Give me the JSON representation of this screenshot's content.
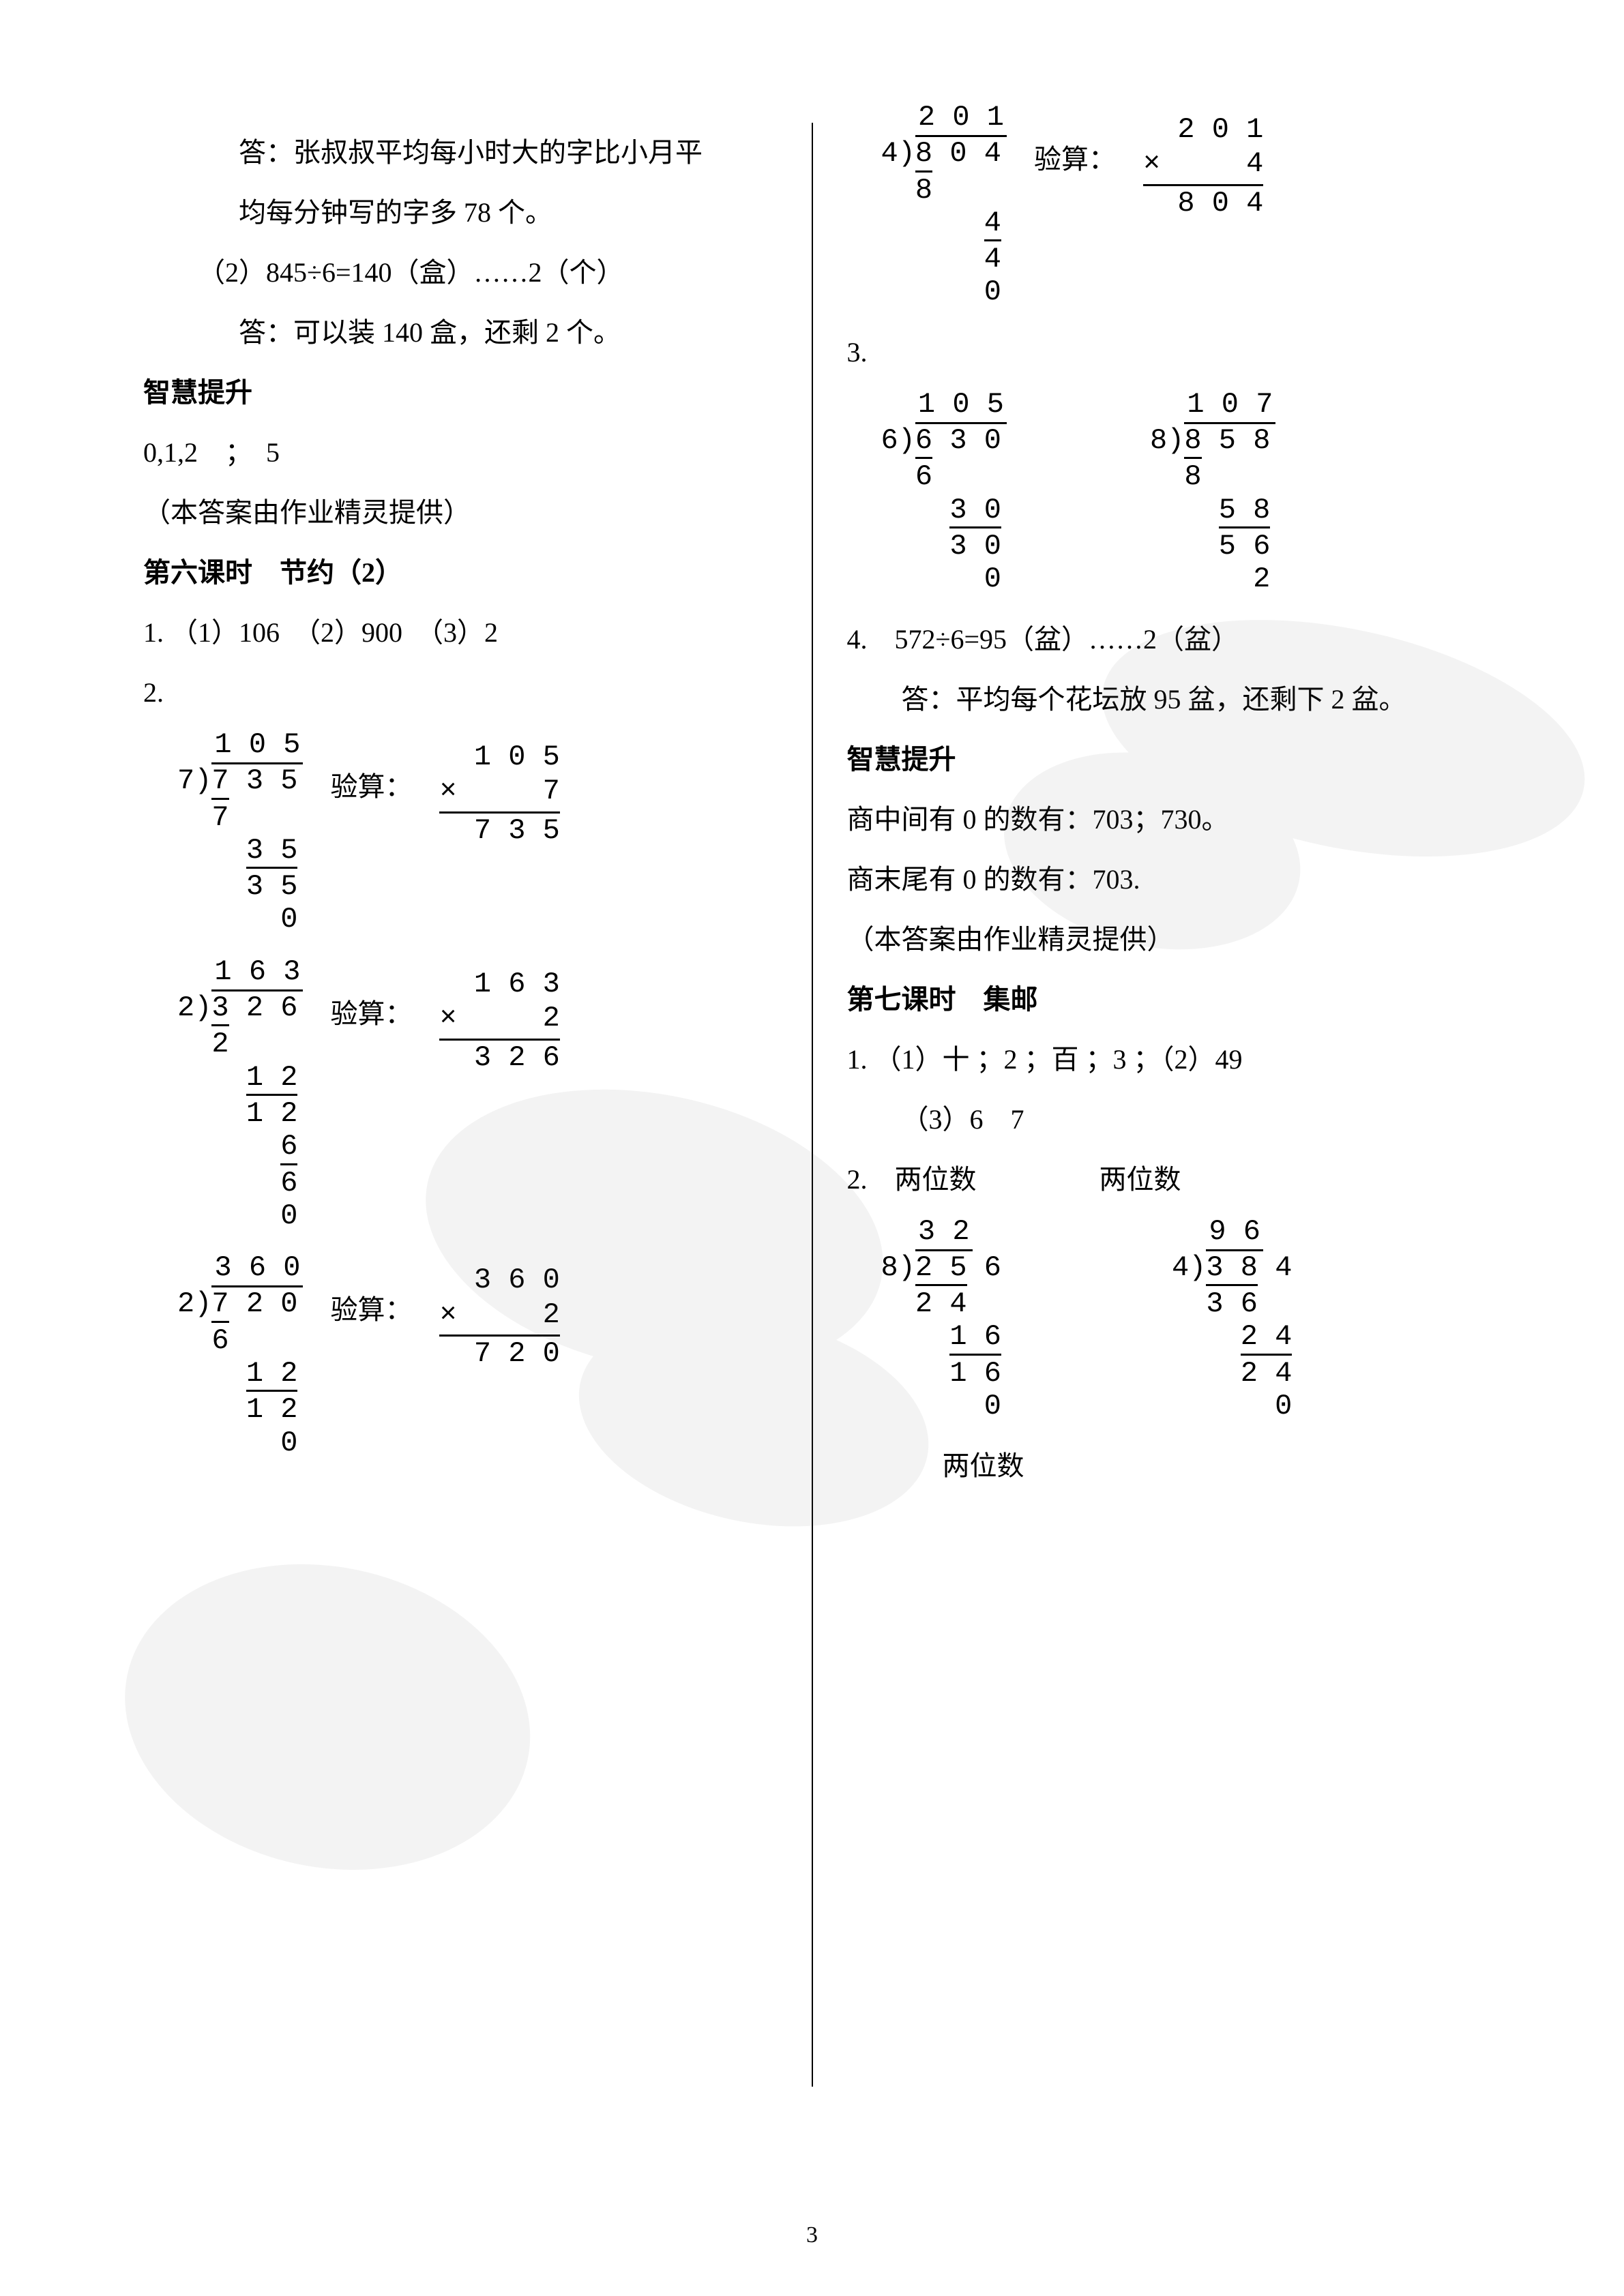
{
  "page_number": "3",
  "colors": {
    "text": "#000000",
    "bg": "#ffffff",
    "watermark": "#888888"
  },
  "left": {
    "ans1": "答：张叔叔平均每小时大的字比小月平",
    "ans1b": "均每分钟写的字多 78 个。",
    "item2": "（2）845÷6=140（盒）……2（个）",
    "ans2": "答：可以装 140 盒，还剩 2 个。",
    "wisdom": "智慧提升",
    "w_line": "0,1,2　；　5",
    "credit": "（本答案由作业精灵提供）",
    "lesson6": "第六课时　节约（2）",
    "q1": "1. （1）106　（2）900　（3）2",
    "q2": "2.",
    "check_label": "验算：",
    "div_a": {
      "divisor": "7",
      "dividend": "7 3 5",
      "quotient": "1 0 5",
      "steps": [
        "7",
        "",
        "3 5",
        "3 5",
        "",
        "0"
      ],
      "lines": [
        1,
        0,
        0,
        1,
        0,
        0
      ],
      "pads": [
        "",
        "",
        "  ",
        "  ",
        "",
        "    "
      ],
      "line_widths": [
        "3ch",
        "",
        "",
        "3ch",
        "",
        "1ch"
      ]
    },
    "mult_a": {
      "a": "1 0 5",
      "b": "×     7",
      "r": "7 3 5"
    },
    "div_b": {
      "divisor": "2",
      "dividend": "3 2 6",
      "quotient": "1 6 3",
      "steps": [
        "2",
        "",
        "1 2",
        "1 2",
        "",
        "6",
        "6",
        "",
        "0"
      ],
      "lines": [
        1,
        0,
        0,
        1,
        0,
        0,
        1,
        0,
        0
      ],
      "pads": [
        "",
        "",
        "  ",
        "  ",
        "",
        "    ",
        "    ",
        "",
        "    "
      ],
      "line_widths": [
        "3ch",
        "",
        "",
        "3ch",
        "",
        "1ch",
        "1ch",
        "",
        "1ch"
      ]
    },
    "mult_b": {
      "a": "1 6 3",
      "b": "×     2",
      "r": "3 2 6"
    },
    "div_c": {
      "divisor": "2",
      "dividend": "7 2 0",
      "quotient": "3 6 0",
      "steps": [
        "6",
        "",
        "1 2",
        "1 2",
        "",
        "0"
      ],
      "lines": [
        1,
        0,
        0,
        1,
        0,
        0
      ],
      "pads": [
        "",
        "",
        "  ",
        "  ",
        "",
        "    "
      ],
      "line_widths": [
        "3ch",
        "",
        "",
        "3ch",
        "",
        "1ch"
      ]
    },
    "mult_c": {
      "a": "3 6 0",
      "b": "×     2",
      "r": "7 2 0"
    }
  },
  "right": {
    "check_label": "验算：",
    "div_d": {
      "divisor": "4",
      "dividend": "8 0 4",
      "quotient": "2 0 1",
      "steps": [
        "8",
        "",
        "4",
        "4",
        "",
        "0"
      ],
      "lines": [
        1,
        0,
        0,
        1,
        0,
        0
      ],
      "pads": [
        "",
        "",
        "    ",
        "    ",
        "",
        "    "
      ],
      "line_widths": [
        "3ch",
        "",
        "",
        "1ch",
        "",
        "1ch"
      ]
    },
    "mult_d": {
      "a": "2 0 1",
      "b": "×     4",
      "r": "8 0 4"
    },
    "q3": "3.",
    "div_e": {
      "divisor": "6",
      "dividend": "6 3 0",
      "quotient": "1 0 5",
      "steps": [
        "6",
        "",
        "3 0",
        "3 0",
        "",
        "0"
      ],
      "lines": [
        1,
        0,
        0,
        1,
        0,
        0
      ],
      "pads": [
        "",
        "",
        "  ",
        "  ",
        "",
        "    "
      ],
      "line_widths": [
        "3ch",
        "",
        "",
        "3ch",
        "",
        "1ch"
      ]
    },
    "div_f": {
      "divisor": "8",
      "dividend": "8 5 8",
      "quotient": "1 0 7",
      "steps": [
        "8",
        "",
        "5 8",
        "5 6",
        "",
        "2"
      ],
      "lines": [
        1,
        0,
        0,
        1,
        0,
        0
      ],
      "pads": [
        "",
        "",
        "  ",
        "  ",
        "",
        "    "
      ],
      "line_widths": [
        "3ch",
        "",
        "",
        "3ch",
        "",
        "1ch"
      ]
    },
    "q4": "4.　572÷6=95（盆）……2（盆）",
    "ans4": "答：平均每个花坛放 95 盆，还剩下 2 盆。",
    "wisdom": "智慧提升",
    "w1": "商中间有 0 的数有：703；730。",
    "w2": "商末尾有 0 的数有：703.",
    "credit": "（本答案由作业精灵提供）",
    "lesson7": "第七课时　集邮",
    "l7_q1": "1. （1）十 ；2 ；百 ；3 ；（2）49",
    "l7_q1b": "（3）6　7",
    "l7_q2": "2.　两位数",
    "l7_q2b": "两位数",
    "div_g": {
      "divisor": "8",
      "dividend": "2 5 6",
      "quotient": "3 2",
      "steps": [
        "2 4",
        "",
        "1 6",
        "1 6",
        "",
        "0"
      ],
      "lines": [
        1,
        0,
        0,
        1,
        0,
        0
      ],
      "pads": [
        "",
        "",
        "  ",
        "  ",
        "",
        "    "
      ],
      "line_widths": [
        "3ch",
        "",
        "",
        "3ch",
        "",
        "1ch"
      ]
    },
    "div_h": {
      "divisor": "4",
      "dividend": "3 8 4",
      "quotient": "9 6",
      "steps": [
        "3 6",
        "",
        "2 4",
        "2 4",
        "",
        "0"
      ],
      "lines": [
        1,
        0,
        0,
        1,
        0,
        0
      ],
      "pads": [
        "",
        "",
        "  ",
        "  ",
        "",
        "    "
      ],
      "line_widths": [
        "3ch",
        "",
        "",
        "3ch",
        "",
        "1ch"
      ]
    },
    "l7_end": "两位数"
  }
}
